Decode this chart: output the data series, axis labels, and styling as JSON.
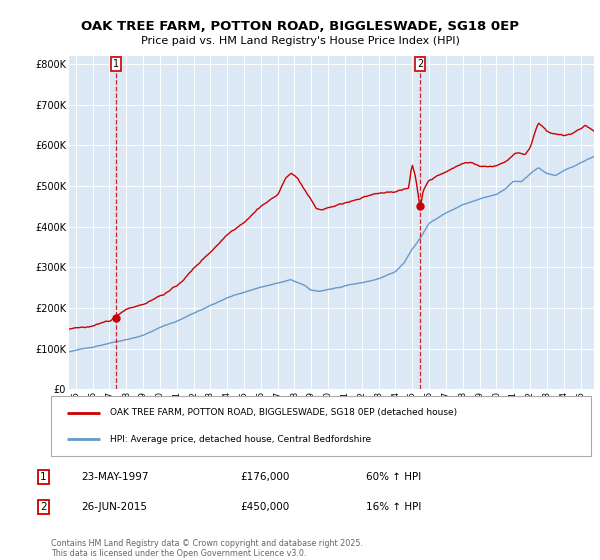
{
  "title1": "OAK TREE FARM, POTTON ROAD, BIGGLESWADE, SG18 0EP",
  "title2": "Price paid vs. HM Land Registry's House Price Index (HPI)",
  "legend_red": "OAK TREE FARM, POTTON ROAD, BIGGLESWADE, SG18 0EP (detached house)",
  "legend_blue": "HPI: Average price, detached house, Central Bedfordshire",
  "annotation1_date": "23-MAY-1997",
  "annotation1_price": "£176,000",
  "annotation1_hpi": "60% ↑ HPI",
  "annotation2_date": "26-JUN-2015",
  "annotation2_price": "£450,000",
  "annotation2_hpi": "16% ↑ HPI",
  "footer": "Contains HM Land Registry data © Crown copyright and database right 2025.\nThis data is licensed under the Open Government Licence v3.0.",
  "bg_color": "#dce9f5",
  "red_color": "#cc0000",
  "blue_color": "#6699cc",
  "vline_color": "#cc0000",
  "ylim": [
    0,
    820000
  ],
  "yticks": [
    0,
    100000,
    200000,
    300000,
    400000,
    500000,
    600000,
    700000,
    800000
  ],
  "ytick_labels": [
    "£0",
    "£100K",
    "£200K",
    "£300K",
    "£400K",
    "£500K",
    "£600K",
    "£700K",
    "£800K"
  ],
  "sale1_x": 1997.39,
  "sale1_y": 176000,
  "sale2_x": 2015.48,
  "sale2_y": 450000,
  "xmin": 1994.6,
  "xmax": 2025.8
}
